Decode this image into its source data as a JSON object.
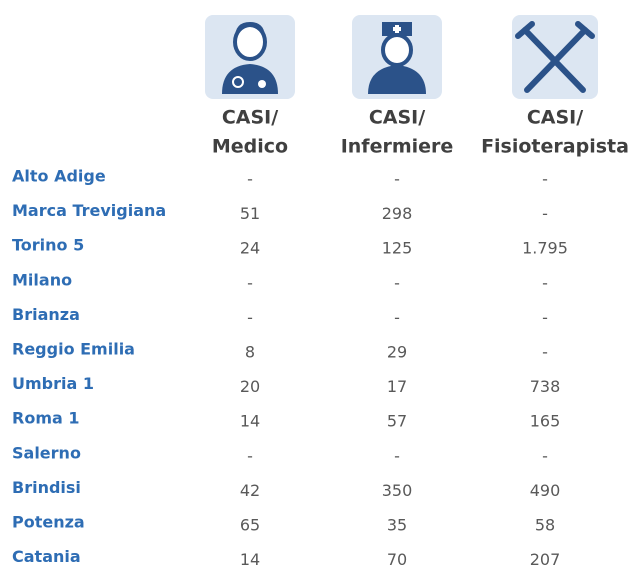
{
  "columns": [
    [
      "CASI/",
      "Medico"
    ],
    [
      "CASI/",
      "Infermiere"
    ],
    [
      "CASI/",
      "Fisioterapista"
    ]
  ],
  "rows": [
    {
      "label": "Alto Adige",
      "values": [
        "-",
        "-",
        "-"
      ]
    },
    {
      "label": "Marca Trevigiana",
      "values": [
        "51",
        "298",
        "-"
      ]
    },
    {
      "label": "Torino 5",
      "values": [
        "24",
        "125",
        "1.795"
      ]
    },
    {
      "label": "Milano",
      "values": [
        "-",
        "-",
        "-"
      ]
    },
    {
      "label": "Brianza",
      "values": [
        "-",
        "-",
        "-"
      ]
    },
    {
      "label": "Reggio Emilia",
      "values": [
        "8",
        "29",
        "-"
      ]
    },
    {
      "label": "Umbria 1",
      "values": [
        "20",
        "17",
        "738"
      ]
    },
    {
      "label": "Roma 1",
      "values": [
        "14",
        "57",
        "165"
      ]
    },
    {
      "label": "Salerno",
      "values": [
        "-",
        "-",
        "-"
      ]
    },
    {
      "label": "Brindisi",
      "values": [
        "42",
        "350",
        "490"
      ]
    },
    {
      "label": "Potenza",
      "values": [
        "65",
        "35",
        "58"
      ]
    },
    {
      "label": "Catania",
      "values": [
        "14",
        "70",
        "207"
      ]
    }
  ]
}
